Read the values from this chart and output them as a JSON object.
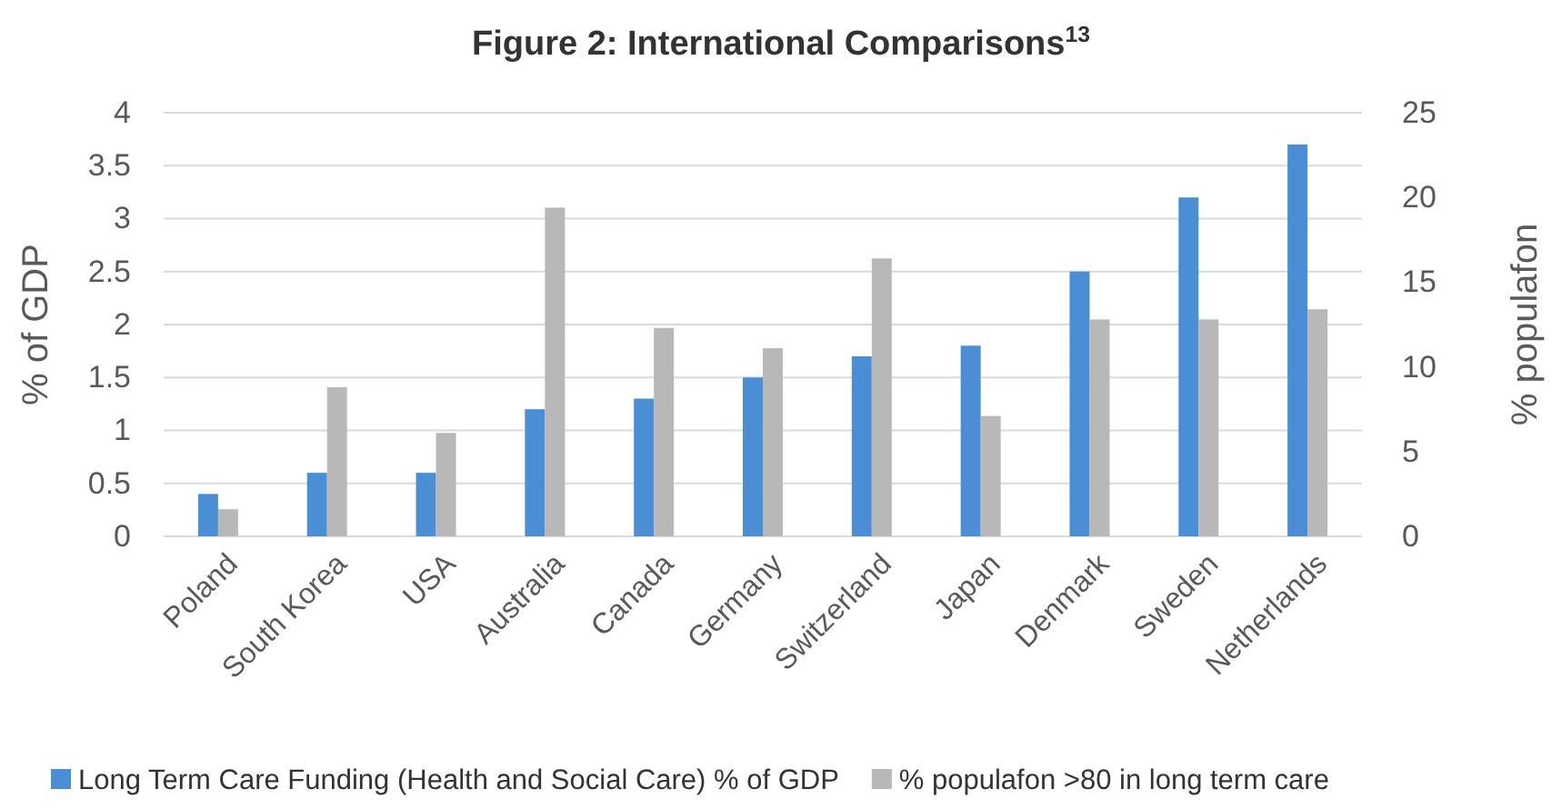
{
  "chart_data": {
    "type": "bar",
    "title": "Figure 2: International Comparisons$^{13}$",
    "ylabel": "% of GDP",
    "y2label": "% populafon",
    "categories": [
      "Poland",
      "South Korea",
      "USA",
      "Australia",
      "Canada",
      "Germany",
      "Switzerland",
      "Japan",
      "Denmark",
      "Sweden",
      "Netherlands"
    ],
    "series": [
      {
        "name": "Long Term Care Funding (Health and Social Care) % of GDP",
        "color": "#4a8fd6",
        "values": [
          0.4,
          0.6,
          0.6,
          1.2,
          1.3,
          1.5,
          1.7,
          1.8,
          2.5,
          3.2,
          3.7
        ]
      },
      {
        "name": "% populafon >80 in long term care",
        "color": "#b8b8b8",
        "axis": "y2",
        "values": [
          1.6,
          8.8,
          6.1,
          19.4,
          12.3,
          11.1,
          16.4,
          7.1,
          12.8,
          12.8,
          13.4
        ]
      }
    ],
    "ylim": [
      0,
      4
    ],
    "yticks": [
      0,
      {
        "value": 0.5,
        "label": "0.5"
      },
      1,
      {
        "value": 1.5,
        "label": "1.5"
      },
      2,
      {
        "value": 2.5,
        "label": "2.5"
      },
      3,
      {
        "value": 3.5,
        "label": "3.5"
      },
      4
    ],
    "y2lim": [
      0,
      25
    ],
    "y2ticks": [
      0,
      5,
      10,
      15,
      20,
      25
    ],
    "grid": "y",
    "legend": "bottom"
  }
}
